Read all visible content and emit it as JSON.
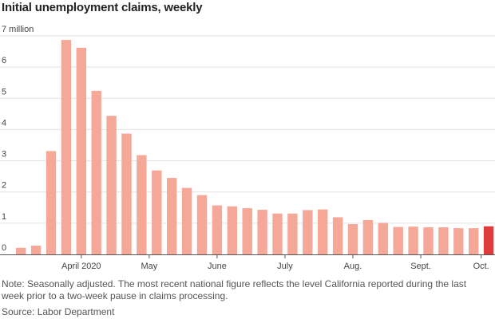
{
  "chart_data": {
    "type": "bar",
    "title": "Initial unemployment claims, weekly",
    "y_unit_label": "7 million",
    "ylim": [
      0,
      7
    ],
    "y_ticks": [
      "0",
      "1",
      "2",
      "3",
      "4",
      "5",
      "6",
      "7 million"
    ],
    "x_tick_labels": [
      {
        "label": "April 2020",
        "at_bar": 4
      },
      {
        "label": "May",
        "at_bar": 8.5
      },
      {
        "label": "June",
        "at_bar": 13
      },
      {
        "label": "July",
        "at_bar": 17.5
      },
      {
        "label": "Aug.",
        "at_bar": 22
      },
      {
        "label": "Sept.",
        "at_bar": 26.5
      },
      {
        "label": "Oct.",
        "at_bar": 30.5
      }
    ],
    "values": [
      0.21,
      0.28,
      3.31,
      6.87,
      6.62,
      5.24,
      4.44,
      3.87,
      3.18,
      2.69,
      2.45,
      2.13,
      1.9,
      1.57,
      1.54,
      1.48,
      1.43,
      1.31,
      1.31,
      1.42,
      1.44,
      1.19,
      0.97,
      1.1,
      1.01,
      0.88,
      0.89,
      0.87,
      0.87,
      0.84,
      0.84,
      0.9
    ],
    "highlight_index": 31,
    "colors": {
      "bar": "#f5a898",
      "highlight": "#e03b3b",
      "grid": "#e2e2e2",
      "axis": "#555555"
    },
    "grid": true,
    "legend": "none"
  },
  "note": "Note: Seasonally adjusted. The most recent national figure reflects the level California reported during the last week prior to a two-week pause in claims processing.",
  "source": "Source: Labor Department"
}
